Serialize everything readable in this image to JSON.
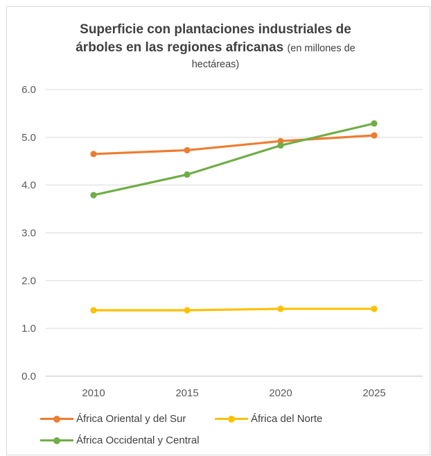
{
  "chart_data": {
    "type": "line",
    "title_line1": "Superficie con plantaciones industriales de",
    "title_line2": "árboles en las regiones africanas",
    "title_suffix": "(en millones de",
    "title_line3": "hectáreas)",
    "categories": [
      "2010",
      "2015",
      "2020",
      "2025"
    ],
    "ylim": [
      0,
      6
    ],
    "yticks": [
      "0.0",
      "1.0",
      "2.0",
      "3.0",
      "4.0",
      "5.0",
      "6.0"
    ],
    "grid": true,
    "legend_position": "bottom",
    "series": [
      {
        "name": "África Oriental y del Sur",
        "color": "#ED7D31",
        "values": [
          4.65,
          4.73,
          4.92,
          5.04
        ]
      },
      {
        "name": "África del Norte",
        "color": "#FFC000",
        "values": [
          1.38,
          1.38,
          1.41,
          1.41
        ]
      },
      {
        "name": "África Occidental y Central",
        "color": "#70AD47",
        "values": [
          3.79,
          4.22,
          4.83,
          5.29
        ]
      }
    ]
  }
}
